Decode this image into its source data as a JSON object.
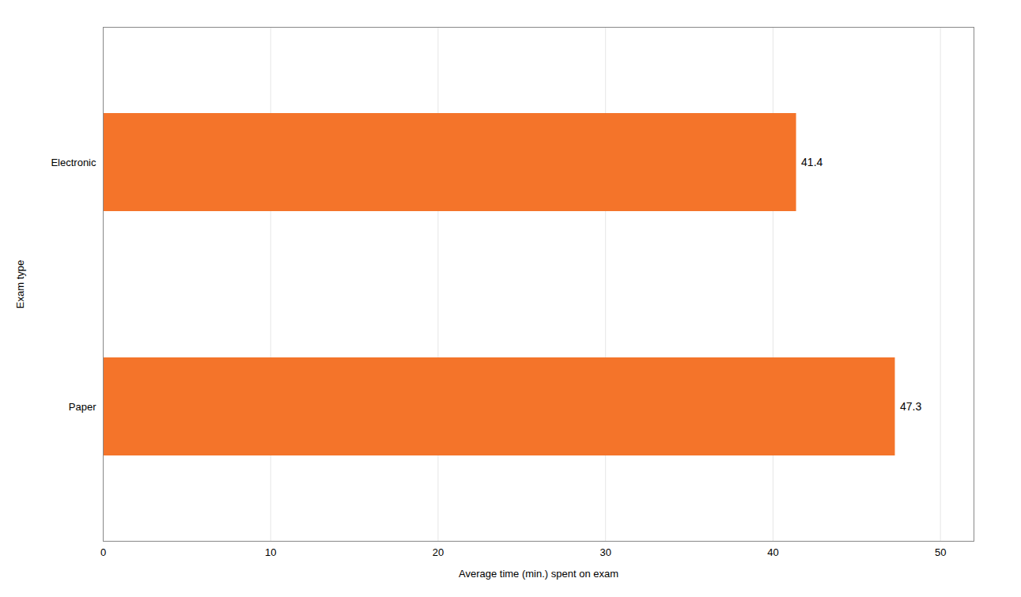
{
  "chart_data": {
    "type": "bar",
    "orientation": "horizontal",
    "categories": [
      "Paper",
      "Electronic"
    ],
    "values": [
      47.3,
      41.4
    ],
    "color": "#F4742A",
    "xlabel": "Average time (min.) spent on exam",
    "ylabel": "Exam type",
    "xlim": [
      0,
      52
    ],
    "xticks": [
      0,
      10,
      20,
      30,
      40,
      50
    ],
    "grid": true,
    "data_labels": true
  }
}
